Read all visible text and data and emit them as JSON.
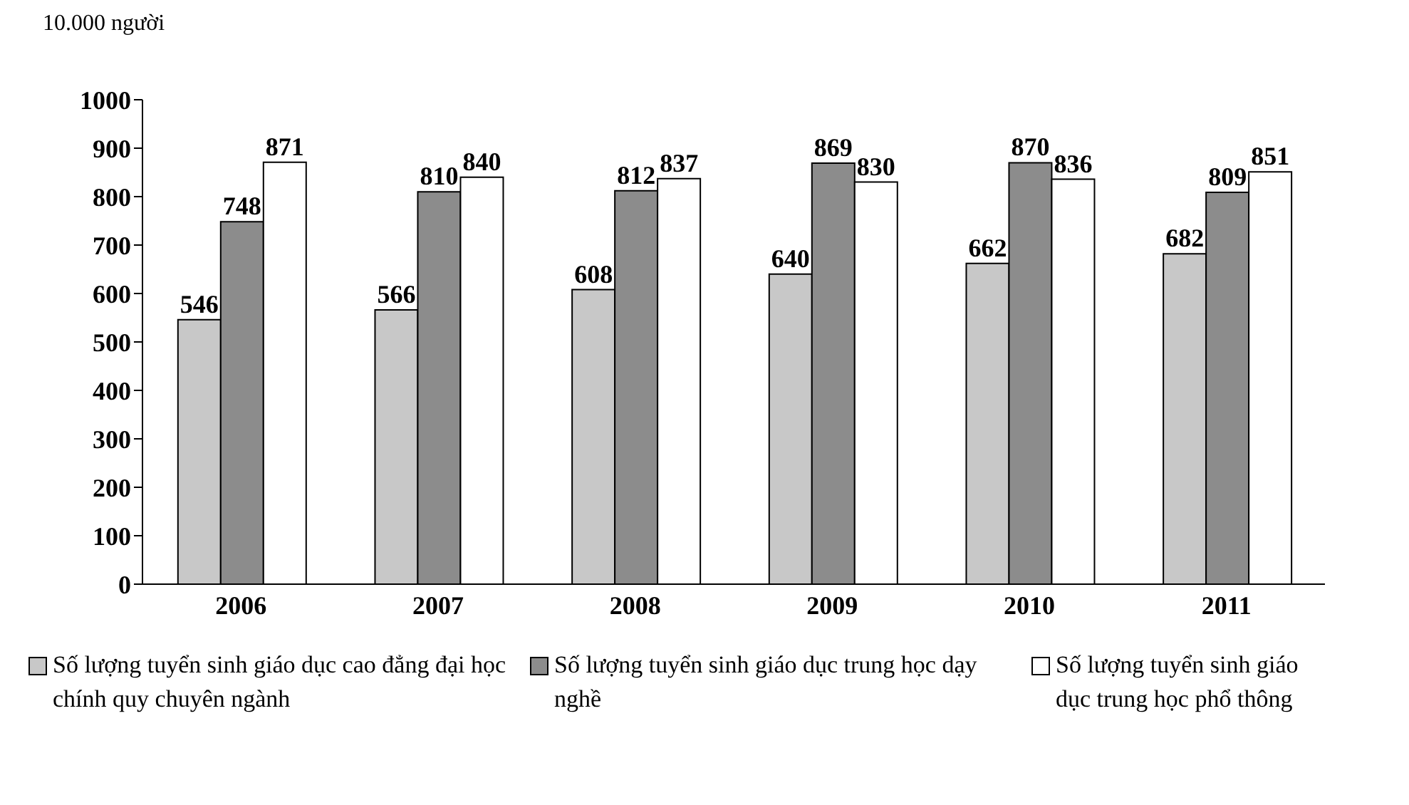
{
  "chart_data": {
    "type": "bar",
    "ylabel": "10.000 người",
    "categories": [
      "2006",
      "2007",
      "2008",
      "2009",
      "2010",
      "2011"
    ],
    "series": [
      {
        "name": "Số lượng tuyển sinh giáo dục cao đẳng đại học chính quy chuyên ngành",
        "color": "#c8c8c8",
        "values": [
          546,
          566,
          608,
          640,
          662,
          682
        ]
      },
      {
        "name": "Số lượng tuyển sinh giáo dục trung học dạy nghề",
        "color": "#8c8c8c",
        "values": [
          748,
          810,
          812,
          869,
          870,
          809
        ]
      },
      {
        "name": "Số lượng tuyển sinh giáo dục trung học phổ thông",
        "color": "#ffffff",
        "values": [
          871,
          840,
          837,
          830,
          836,
          851
        ]
      }
    ],
    "ylim": [
      0,
      1000
    ],
    "yticks": [
      0,
      100,
      200,
      300,
      400,
      500,
      600,
      700,
      800,
      900,
      1000
    ],
    "grid": false,
    "legend": "bottom",
    "data_labels": true
  }
}
